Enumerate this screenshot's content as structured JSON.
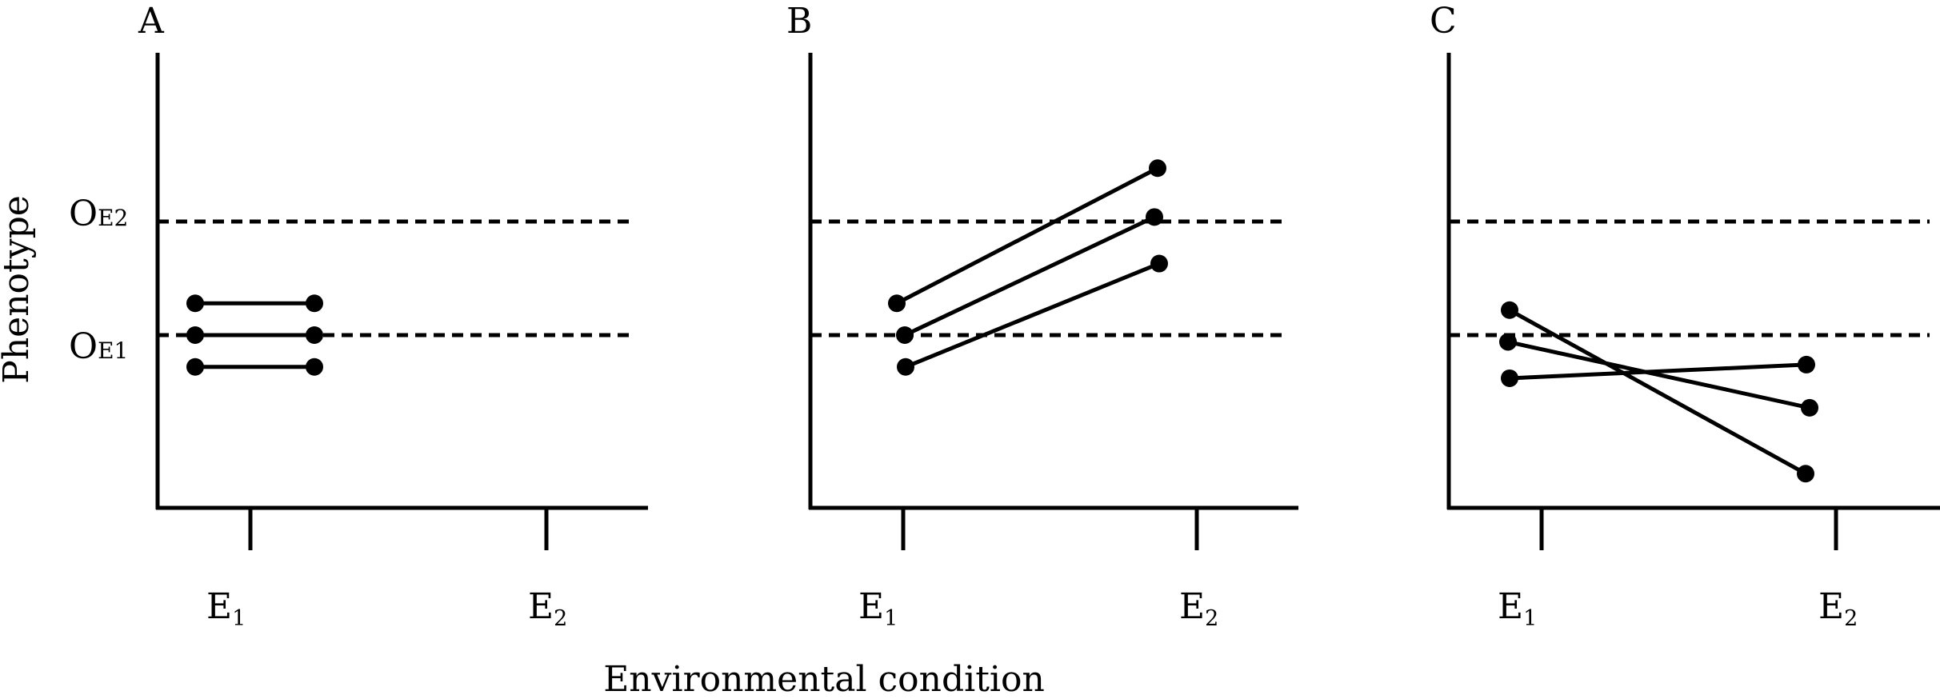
{
  "figure": {
    "ylabel": "Phenotype",
    "xlabel": "Environmental condition",
    "reference_lines": [
      {
        "main": "O",
        "sub": "E2",
        "level": 2
      },
      {
        "main": "O",
        "sub": "E1",
        "level": 1
      }
    ],
    "environments": [
      {
        "main": "E",
        "sub": "1"
      },
      {
        "main": "E",
        "sub": "2"
      }
    ],
    "panels": [
      {
        "label": "A",
        "lines": [
          {
            "e1": 1.28,
            "e2": 1.28
          },
          {
            "e1": 1.0,
            "e2": 1.0
          },
          {
            "e1": 0.72,
            "e2": 0.72
          }
        ]
      },
      {
        "label": "B",
        "lines": [
          {
            "e1": 1.28,
            "e2": 2.47
          },
          {
            "e1": 1.0,
            "e2": 2.04
          },
          {
            "e1": 0.72,
            "e2": 1.63
          }
        ]
      },
      {
        "label": "C",
        "lines": [
          {
            "e1": 1.22,
            "e2": -0.22
          },
          {
            "e1": 0.94,
            "e2": 0.36
          },
          {
            "e1": 0.62,
            "e2": 0.74
          }
        ]
      }
    ]
  }
}
